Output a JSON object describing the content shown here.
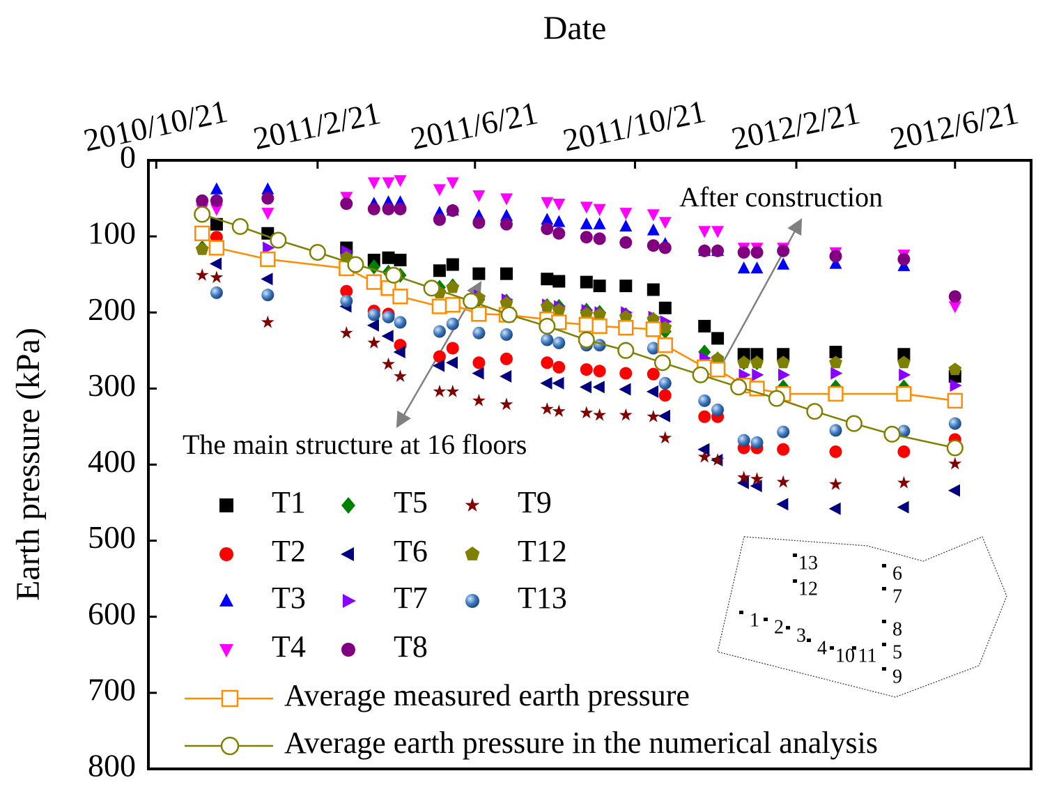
{
  "chart_data": {
    "type": "scatter",
    "xlabel": "Date",
    "ylabel": "Earth pressure (kPa)",
    "x": [
      "2010/11/25",
      "2010/12/6",
      "2011/1/14",
      "2011/3/15",
      "2011/4/5",
      "2011/4/16",
      "2011/4/25",
      "2011/5/25",
      "2011/6/4",
      "2011/6/24",
      "2011/7/15",
      "2011/8/15",
      "2011/8/24",
      "2011/9/14",
      "2011/9/24",
      "2011/10/14",
      "2011/11/4",
      "2011/11/13",
      "2011/12/13",
      "2011/12/23",
      "2012/1/12",
      "2012/1/22",
      "2012/2/11",
      "2012/3/22",
      "2012/5/13",
      "2012/6/21"
    ],
    "xlim": [
      "2010/10/15",
      "2012/8/18"
    ],
    "xticks": [
      "2010/10/21",
      "2011/2/21",
      "2011/6/21",
      "2011/10/21",
      "2012/2/21",
      "2012/6/21"
    ],
    "ylim": [
      0,
      800
    ],
    "yticks": [
      0,
      100,
      200,
      300,
      400,
      500,
      600,
      700,
      800
    ],
    "y_inverted": true,
    "series": [
      {
        "name": "T1",
        "color": "#000000",
        "marker": "square",
        "values": [
          null,
          84,
          96,
          115,
          131,
          128,
          131,
          145,
          137,
          149,
          149,
          156,
          159,
          160,
          165,
          165,
          170,
          194,
          218,
          234,
          255,
          255,
          255,
          252,
          255,
          284
        ]
      },
      {
        "name": "T2",
        "color": "#ff0000",
        "marker": "circle",
        "values": [
          null,
          101,
          null,
          172,
          198,
          202,
          243,
          258,
          247,
          266,
          261,
          266,
          272,
          275,
          277,
          280,
          281,
          309,
          337,
          337,
          378,
          378,
          380,
          383,
          383,
          367
        ]
      },
      {
        "name": "T3",
        "color": "#0000ff",
        "marker": "up",
        "values": [
          null,
          38,
          38,
          null,
          57,
          55,
          55,
          69,
          66,
          73,
          73,
          78,
          81,
          84,
          84,
          87,
          92,
          110,
          119,
          119,
          142,
          142,
          137,
          136,
          139,
          null
        ]
      },
      {
        "name": "T4",
        "color": "#ff00ff",
        "marker": "down",
        "values": [
          64,
          64,
          69,
          48,
          29,
          29,
          26,
          38,
          29,
          46,
          50,
          55,
          57,
          61,
          64,
          69,
          71,
          81,
          93,
          93,
          115,
          115,
          115,
          121,
          124,
          192
        ]
      },
      {
        "name": "T5",
        "color": "#008000",
        "marker": "diamond",
        "values": [
          115,
          null,
          null,
          124,
          140,
          147,
          151,
          167,
          165,
          183,
          185,
          191,
          192,
          197,
          200,
          203,
          209,
          225,
          252,
          261,
          266,
          266,
          298,
          298,
          298,
          null
        ]
      },
      {
        "name": "T6",
        "color": "#000080",
        "marker": "left",
        "values": [
          null,
          136,
          156,
          192,
          217,
          231,
          252,
          270,
          266,
          280,
          284,
          293,
          293,
          298,
          298,
          301,
          304,
          336,
          380,
          394,
          424,
          428,
          452,
          458,
          456,
          434
        ]
      },
      {
        "name": "T7",
        "color": "#8a00ff",
        "marker": "right",
        "values": [
          null,
          null,
          115,
          120,
          null,
          null,
          null,
          null,
          null,
          178,
          183,
          190,
          192,
          197,
          200,
          200,
          206,
          212,
          260,
          null,
          282,
          282,
          282,
          280,
          282,
          296
        ]
      },
      {
        "name": "T8",
        "color": "#800080",
        "marker": "circle",
        "values": [
          53,
          53,
          50,
          57,
          64,
          64,
          64,
          78,
          66,
          82,
          84,
          90,
          96,
          101,
          103,
          108,
          112,
          115,
          119,
          119,
          121,
          121,
          119,
          126,
          130,
          179
        ]
      },
      {
        "name": "T9",
        "color": "#800000",
        "marker": "star",
        "values": [
          151,
          154,
          213,
          227,
          240,
          268,
          284,
          304,
          304,
          316,
          321,
          327,
          330,
          332,
          335,
          335,
          337,
          365,
          390,
          394,
          417,
          419,
          423,
          426,
          424,
          399
        ]
      },
      {
        "name": "T12",
        "color": "#808000",
        "marker": "pentagon",
        "values": [
          117,
          null,
          null,
          128,
          null,
          null,
          null,
          174,
          167,
          181,
          188,
          192,
          197,
          202,
          203,
          206,
          209,
          220,
          null,
          261,
          266,
          266,
          266,
          266,
          266,
          275
        ]
      },
      {
        "name": "T13",
        "color": "#3c78c0",
        "marker": "sphere",
        "values": [
          null,
          174,
          177,
          185,
          203,
          206,
          213,
          225,
          215,
          227,
          229,
          236,
          240,
          243,
          243,
          247,
          247,
          293,
          316,
          328,
          368,
          371,
          357,
          355,
          356,
          346
        ]
      },
      {
        "name": "Average measured earth pressure",
        "color": "#ff8c00",
        "marker": "hollow-square",
        "line": true,
        "values": [
          96,
          115,
          130,
          142,
          160,
          168,
          179,
          192,
          190,
          202,
          203,
          209,
          213,
          216,
          218,
          220,
          222,
          243,
          272,
          275,
          296,
          300,
          307,
          307,
          307,
          316
        ]
      },
      {
        "name": "Average earth pressure in the numerical analysis",
        "color": "#808000",
        "marker": "hollow-circle",
        "line": true,
        "x": [
          "2010/11/25",
          "2010/12/24",
          "2011/1/22",
          "2011/2/21",
          "2011/3/22",
          "2011/4/20",
          "2011/5/19",
          "2011/6/18",
          "2011/7/17",
          "2011/8/15",
          "2011/9/14",
          "2011/10/14",
          "2011/11/11",
          "2011/12/10",
          "2012/1/8",
          "2012/2/6",
          "2012/3/6",
          "2012/4/5",
          "2012/5/4",
          "2012/6/21"
        ],
        "values": [
          71,
          87,
          105,
          121,
          137,
          151,
          168,
          185,
          203,
          218,
          236,
          250,
          266,
          282,
          298,
          313,
          330,
          346,
          360,
          378
        ]
      }
    ],
    "annotations": [
      "After construction",
      "The main structure at 16 floors"
    ],
    "inset_labels": [
      "13",
      "12",
      "6",
      "7",
      "1",
      "2",
      "3",
      "8",
      "4",
      "10",
      "11",
      "5",
      "9"
    ]
  }
}
